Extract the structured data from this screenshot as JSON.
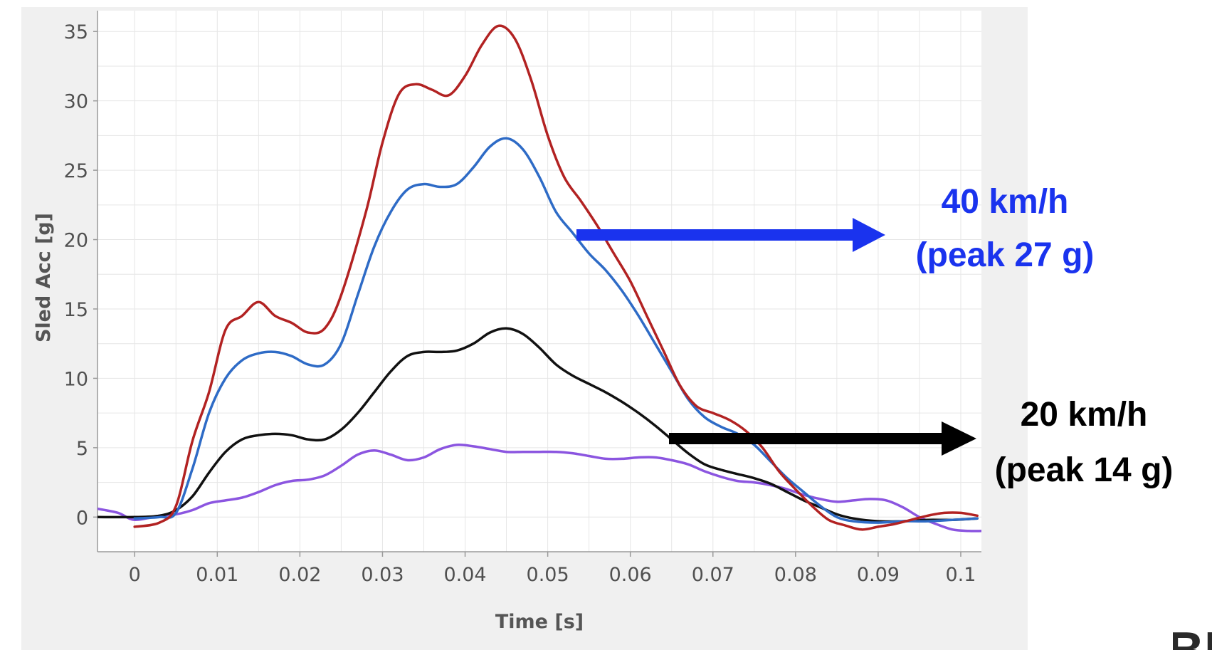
{
  "chart_data": {
    "type": "line",
    "xlabel": "Time [s]",
    "ylabel": "Sled Acc [g]",
    "xlim": [
      -0.0045,
      0.1025
    ],
    "ylim": [
      -2.5,
      36.5
    ],
    "x_ticks": [
      0,
      0.01,
      0.02,
      0.03,
      0.04,
      0.05,
      0.06,
      0.07,
      0.08,
      0.09,
      0.1
    ],
    "x_tick_labels": [
      "0",
      "0.01",
      "0.02",
      "0.03",
      "0.04",
      "0.05",
      "0.06",
      "0.07",
      "0.08",
      "0.09",
      "0.1"
    ],
    "y_ticks": [
      0,
      5,
      10,
      15,
      20,
      25,
      30,
      35
    ],
    "y_tick_labels": [
      "0",
      "5",
      "10",
      "15",
      "20",
      "25",
      "30",
      "35"
    ],
    "grid": true,
    "series": [
      {
        "color": "#b22222",
        "points": [
          [
            0,
            -0.7
          ],
          [
            0.003,
            -0.4
          ],
          [
            0.005,
            0.8
          ],
          [
            0.007,
            5.5
          ],
          [
            0.009,
            9.0
          ],
          [
            0.011,
            13.5
          ],
          [
            0.013,
            14.5
          ],
          [
            0.015,
            15.5
          ],
          [
            0.017,
            14.5
          ],
          [
            0.019,
            14.0
          ],
          [
            0.021,
            13.3
          ],
          [
            0.023,
            13.6
          ],
          [
            0.025,
            16.0
          ],
          [
            0.028,
            22.0
          ],
          [
            0.03,
            27.0
          ],
          [
            0.032,
            30.5
          ],
          [
            0.034,
            31.2
          ],
          [
            0.036,
            30.8
          ],
          [
            0.038,
            30.4
          ],
          [
            0.04,
            31.8
          ],
          [
            0.042,
            34.0
          ],
          [
            0.044,
            35.4
          ],
          [
            0.046,
            34.5
          ],
          [
            0.048,
            31.5
          ],
          [
            0.05,
            27.5
          ],
          [
            0.052,
            24.5
          ],
          [
            0.054,
            22.8
          ],
          [
            0.056,
            21.0
          ],
          [
            0.058,
            19.0
          ],
          [
            0.06,
            17.0
          ],
          [
            0.062,
            14.5
          ],
          [
            0.064,
            12.0
          ],
          [
            0.066,
            9.5
          ],
          [
            0.068,
            8.0
          ],
          [
            0.07,
            7.5
          ],
          [
            0.072,
            7.0
          ],
          [
            0.074,
            6.2
          ],
          [
            0.076,
            5.0
          ],
          [
            0.078,
            3.3
          ],
          [
            0.08,
            2.0
          ],
          [
            0.082,
            0.8
          ],
          [
            0.084,
            -0.2
          ],
          [
            0.086,
            -0.6
          ],
          [
            0.088,
            -0.9
          ],
          [
            0.09,
            -0.7
          ],
          [
            0.092,
            -0.5
          ],
          [
            0.094,
            -0.2
          ],
          [
            0.096,
            0.1
          ],
          [
            0.098,
            0.3
          ],
          [
            0.1,
            0.3
          ],
          [
            0.102,
            0.1
          ]
        ]
      },
      {
        "color": "#2e6bc6",
        "points": [
          [
            0,
            -0.1
          ],
          [
            0.003,
            0.0
          ],
          [
            0.005,
            0.3
          ],
          [
            0.007,
            3.5
          ],
          [
            0.009,
            7.5
          ],
          [
            0.011,
            10.0
          ],
          [
            0.013,
            11.3
          ],
          [
            0.015,
            11.8
          ],
          [
            0.017,
            11.9
          ],
          [
            0.019,
            11.6
          ],
          [
            0.021,
            11.0
          ],
          [
            0.023,
            11.0
          ],
          [
            0.025,
            12.5
          ],
          [
            0.027,
            16.0
          ],
          [
            0.029,
            19.5
          ],
          [
            0.031,
            22.0
          ],
          [
            0.033,
            23.6
          ],
          [
            0.035,
            24.0
          ],
          [
            0.037,
            23.8
          ],
          [
            0.039,
            24.0
          ],
          [
            0.041,
            25.2
          ],
          [
            0.043,
            26.7
          ],
          [
            0.045,
            27.3
          ],
          [
            0.047,
            26.5
          ],
          [
            0.049,
            24.5
          ],
          [
            0.051,
            22.0
          ],
          [
            0.053,
            20.5
          ],
          [
            0.055,
            19.0
          ],
          [
            0.057,
            17.8
          ],
          [
            0.059,
            16.3
          ],
          [
            0.061,
            14.5
          ],
          [
            0.063,
            12.5
          ],
          [
            0.065,
            10.5
          ],
          [
            0.067,
            8.5
          ],
          [
            0.069,
            7.2
          ],
          [
            0.071,
            6.5
          ],
          [
            0.073,
            6.0
          ],
          [
            0.075,
            5.2
          ],
          [
            0.077,
            4.0
          ],
          [
            0.079,
            2.8
          ],
          [
            0.081,
            1.8
          ],
          [
            0.083,
            0.8
          ],
          [
            0.085,
            0.0
          ],
          [
            0.087,
            -0.3
          ],
          [
            0.09,
            -0.4
          ],
          [
            0.093,
            -0.3
          ],
          [
            0.096,
            -0.3
          ],
          [
            0.099,
            -0.2
          ],
          [
            0.102,
            -0.1
          ]
        ]
      },
      {
        "color": "#111111",
        "points": [
          [
            -0.0045,
            0.0
          ],
          [
            0,
            0.0
          ],
          [
            0.003,
            0.1
          ],
          [
            0.005,
            0.5
          ],
          [
            0.007,
            1.5
          ],
          [
            0.009,
            3.2
          ],
          [
            0.011,
            4.7
          ],
          [
            0.013,
            5.6
          ],
          [
            0.015,
            5.9
          ],
          [
            0.017,
            6.0
          ],
          [
            0.019,
            5.9
          ],
          [
            0.021,
            5.6
          ],
          [
            0.023,
            5.6
          ],
          [
            0.025,
            6.3
          ],
          [
            0.027,
            7.5
          ],
          [
            0.029,
            9.0
          ],
          [
            0.031,
            10.5
          ],
          [
            0.033,
            11.6
          ],
          [
            0.035,
            11.9
          ],
          [
            0.037,
            11.9
          ],
          [
            0.039,
            12.0
          ],
          [
            0.041,
            12.5
          ],
          [
            0.043,
            13.3
          ],
          [
            0.045,
            13.6
          ],
          [
            0.047,
            13.2
          ],
          [
            0.049,
            12.2
          ],
          [
            0.051,
            11.0
          ],
          [
            0.053,
            10.2
          ],
          [
            0.055,
            9.6
          ],
          [
            0.057,
            9.0
          ],
          [
            0.059,
            8.3
          ],
          [
            0.061,
            7.5
          ],
          [
            0.063,
            6.6
          ],
          [
            0.065,
            5.6
          ],
          [
            0.067,
            4.6
          ],
          [
            0.069,
            3.8
          ],
          [
            0.071,
            3.4
          ],
          [
            0.073,
            3.1
          ],
          [
            0.075,
            2.8
          ],
          [
            0.077,
            2.4
          ],
          [
            0.079,
            1.8
          ],
          [
            0.081,
            1.2
          ],
          [
            0.083,
            0.7
          ],
          [
            0.085,
            0.2
          ],
          [
            0.087,
            -0.1
          ],
          [
            0.09,
            -0.3
          ],
          [
            0.093,
            -0.3
          ],
          [
            0.096,
            -0.2
          ],
          [
            0.099,
            -0.2
          ],
          [
            0.102,
            -0.1
          ]
        ]
      },
      {
        "color": "#8b55e0",
        "points": [
          [
            -0.0045,
            0.6
          ],
          [
            -0.002,
            0.3
          ],
          [
            0,
            -0.2
          ],
          [
            0.003,
            0.1
          ],
          [
            0.005,
            0.2
          ],
          [
            0.007,
            0.5
          ],
          [
            0.009,
            1.0
          ],
          [
            0.011,
            1.2
          ],
          [
            0.013,
            1.4
          ],
          [
            0.015,
            1.8
          ],
          [
            0.017,
            2.3
          ],
          [
            0.019,
            2.6
          ],
          [
            0.021,
            2.7
          ],
          [
            0.023,
            3.0
          ],
          [
            0.025,
            3.7
          ],
          [
            0.027,
            4.5
          ],
          [
            0.029,
            4.8
          ],
          [
            0.031,
            4.5
          ],
          [
            0.033,
            4.1
          ],
          [
            0.035,
            4.3
          ],
          [
            0.037,
            4.9
          ],
          [
            0.039,
            5.2
          ],
          [
            0.041,
            5.1
          ],
          [
            0.043,
            4.9
          ],
          [
            0.045,
            4.7
          ],
          [
            0.047,
            4.7
          ],
          [
            0.049,
            4.7
          ],
          [
            0.051,
            4.7
          ],
          [
            0.053,
            4.6
          ],
          [
            0.055,
            4.4
          ],
          [
            0.057,
            4.2
          ],
          [
            0.059,
            4.2
          ],
          [
            0.061,
            4.3
          ],
          [
            0.063,
            4.3
          ],
          [
            0.065,
            4.1
          ],
          [
            0.067,
            3.8
          ],
          [
            0.069,
            3.3
          ],
          [
            0.071,
            2.9
          ],
          [
            0.073,
            2.6
          ],
          [
            0.075,
            2.5
          ],
          [
            0.077,
            2.3
          ],
          [
            0.079,
            2.0
          ],
          [
            0.081,
            1.6
          ],
          [
            0.083,
            1.3
          ],
          [
            0.085,
            1.1
          ],
          [
            0.087,
            1.2
          ],
          [
            0.089,
            1.3
          ],
          [
            0.091,
            1.2
          ],
          [
            0.093,
            0.7
          ],
          [
            0.095,
            0.0
          ],
          [
            0.097,
            -0.5
          ],
          [
            0.099,
            -0.9
          ],
          [
            0.101,
            -1.0
          ],
          [
            0.1025,
            -1.0
          ]
        ]
      }
    ],
    "annotations": [
      {
        "lines": [
          "40 km/h",
          "(peak 27 g)"
        ],
        "color": "#1a33ee",
        "arrow_color": "#1a33ee"
      },
      {
        "lines": [
          "20 km/h",
          "(peak 14 g)"
        ],
        "color": "#000000",
        "arrow_color": "#000000"
      }
    ]
  },
  "logo_fragment_text": "BIOS"
}
